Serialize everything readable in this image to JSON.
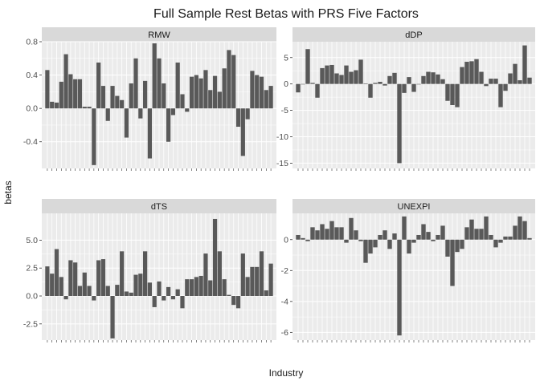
{
  "chart_data": {
    "type": "bar",
    "title": "Full Sample Rest Betas with PRS Five Factors",
    "xlabel": "Industry",
    "ylabel": "betas",
    "facet_layout": "2x2 grid, strip titles on top",
    "grid": true,
    "colors": {
      "bar": "#595959",
      "panel_bg": "#ebebeb",
      "strip_bg": "#d9d9d9",
      "gridline": "#ffffff",
      "text": "#4d4d4d",
      "title": "#1a1a1a"
    },
    "panels": [
      {
        "title": "RMW",
        "ylim": [
          -0.72,
          0.8
        ],
        "yticks": [
          -0.4,
          0.0,
          0.4,
          0.8
        ],
        "ytick_labels": [
          "-0.4",
          "0.0",
          "0.4",
          "0.8"
        ],
        "values": [
          0.46,
          0.08,
          0.07,
          0.32,
          0.65,
          0.41,
          0.35,
          0.35,
          0.02,
          0.02,
          -0.68,
          0.55,
          0.27,
          -0.15,
          0.27,
          0.15,
          0.1,
          -0.35,
          0.3,
          0.6,
          -0.12,
          0.33,
          -0.6,
          0.78,
          0.6,
          0.3,
          -0.4,
          -0.08,
          0.55,
          0.17,
          -0.04,
          0.38,
          0.4,
          0.36,
          0.46,
          0.22,
          0.39,
          0.2,
          0.48,
          0.7,
          0.64,
          -0.22,
          -0.57,
          -0.13,
          0.45,
          0.4,
          0.38,
          0.22,
          0.27
        ]
      },
      {
        "title": "dDP",
        "ylim": [
          -16,
          8
        ],
        "yticks": [
          -15,
          -10,
          -5,
          0,
          5
        ],
        "ytick_labels": [
          "-15",
          "-10",
          "-5",
          "0",
          "5"
        ],
        "values": [
          -1.6,
          0.0,
          6.6,
          0.2,
          -2.6,
          3.0,
          3.5,
          3.6,
          2.0,
          1.7,
          3.5,
          2.3,
          2.6,
          4.6,
          0.1,
          -2.6,
          0.2,
          0.4,
          -0.3,
          1.5,
          2.1,
          -15.0,
          -1.7,
          1.3,
          -1.5,
          0.0,
          1.5,
          2.3,
          2.2,
          1.8,
          0.9,
          -3.2,
          -4.0,
          -4.4,
          3.2,
          4.2,
          4.3,
          4.7,
          2.3,
          -0.4,
          1.0,
          1.0,
          -4.4,
          -1.3,
          2.0,
          3.8,
          0.7,
          7.3,
          1.2
        ]
      },
      {
        "title": "dTS",
        "ylim": [
          -3.95,
          7.4
        ],
        "yticks": [
          -2.5,
          0.0,
          2.5,
          5.0
        ],
        "ytick_labels": [
          "-2.5",
          "0.0",
          "2.5",
          "5.0"
        ],
        "values": [
          2.65,
          2.0,
          4.2,
          1.7,
          -0.3,
          3.2,
          3.0,
          0.9,
          2.1,
          0.9,
          -0.4,
          3.2,
          3.3,
          0.9,
          -3.8,
          1.0,
          4.0,
          0.4,
          0.3,
          1.9,
          2.0,
          4.0,
          1.2,
          -1.0,
          1.3,
          -0.4,
          0.8,
          -0.3,
          0.6,
          -1.1,
          1.5,
          1.5,
          1.7,
          1.8,
          3.8,
          1.4,
          6.9,
          4.0,
          1.5,
          0.1,
          -0.8,
          -1.1,
          3.8,
          1.7,
          2.6,
          2.6,
          4.0,
          0.5,
          2.9
        ]
      },
      {
        "title": "UNEXPI",
        "ylim": [
          -6.5,
          1.7
        ],
        "yticks": [
          -6,
          -4,
          -2,
          0
        ],
        "ytick_labels": [
          "-6",
          "-4",
          "-2",
          "0"
        ],
        "values": [
          0.3,
          0.1,
          -0.1,
          0.8,
          0.6,
          1.0,
          0.7,
          1.2,
          0.8,
          0.8,
          -0.2,
          1.4,
          0.6,
          -0.1,
          -1.5,
          -0.9,
          -0.5,
          0.3,
          0.6,
          -0.6,
          0.4,
          -6.2,
          1.5,
          -0.9,
          -0.2,
          0.3,
          1.0,
          0.5,
          -0.1,
          0.3,
          0.9,
          -1.1,
          -3.0,
          -0.8,
          -0.6,
          0.8,
          1.3,
          0.7,
          0.7,
          1.5,
          0.3,
          -0.5,
          -0.2,
          0.2,
          0.2,
          0.9,
          1.5,
          1.2,
          0.1
        ]
      }
    ]
  }
}
